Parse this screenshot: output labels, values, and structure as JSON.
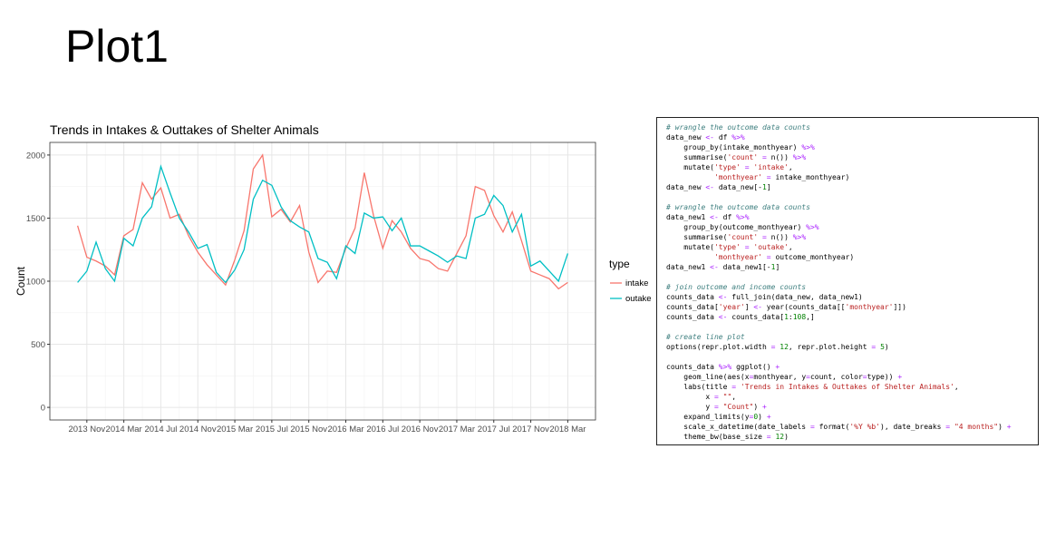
{
  "slide_title": "Plot1",
  "chart_data": {
    "type": "line",
    "title": "Trends in Intakes & Outtakes of Shelter Animals",
    "y_label": "Count",
    "x": [
      "2013-10",
      "2013-11",
      "2013-12",
      "2014-01",
      "2014-02",
      "2014-03",
      "2014-04",
      "2014-05",
      "2014-06",
      "2014-07",
      "2014-08",
      "2014-09",
      "2014-10",
      "2014-11",
      "2014-12",
      "2015-01",
      "2015-02",
      "2015-03",
      "2015-04",
      "2015-05",
      "2015-06",
      "2015-07",
      "2015-08",
      "2015-09",
      "2015-10",
      "2015-11",
      "2015-12",
      "2016-01",
      "2016-02",
      "2016-03",
      "2016-04",
      "2016-05",
      "2016-06",
      "2016-07",
      "2016-08",
      "2016-09",
      "2016-10",
      "2016-11",
      "2016-12",
      "2017-01",
      "2017-02",
      "2017-03",
      "2017-04",
      "2017-05",
      "2017-06",
      "2017-07",
      "2017-08",
      "2017-09",
      "2017-10",
      "2017-11",
      "2017-12",
      "2018-01",
      "2018-02",
      "2018-03"
    ],
    "series": [
      {
        "name": "intake",
        "color": "#F8766D",
        "values": [
          1440,
          1190,
          1160,
          1120,
          1050,
          1360,
          1410,
          1780,
          1650,
          1740,
          1500,
          1530,
          1360,
          1230,
          1130,
          1050,
          970,
          1170,
          1400,
          1890,
          2000,
          1510,
          1570,
          1470,
          1600,
          1230,
          990,
          1080,
          1070,
          1260,
          1420,
          1860,
          1520,
          1260,
          1480,
          1390,
          1260,
          1180,
          1160,
          1100,
          1080,
          1220,
          1360,
          1750,
          1720,
          1520,
          1390,
          1550,
          1320,
          1080,
          1050,
          1020,
          940,
          990
        ]
      },
      {
        "name": "outake",
        "color": "#00BFC4",
        "values": [
          990,
          1080,
          1310,
          1100,
          1000,
          1340,
          1280,
          1500,
          1590,
          1910,
          1700,
          1500,
          1390,
          1260,
          1290,
          1070,
          990,
          1090,
          1250,
          1650,
          1800,
          1760,
          1590,
          1480,
          1430,
          1390,
          1180,
          1150,
          1020,
          1280,
          1220,
          1540,
          1500,
          1510,
          1400,
          1500,
          1280,
          1280,
          1240,
          1200,
          1150,
          1200,
          1180,
          1500,
          1530,
          1680,
          1600,
          1390,
          1530,
          1120,
          1160,
          1080,
          1000,
          1220
        ]
      }
    ],
    "xlim": [
      "2013-07",
      "2018-06"
    ],
    "xticks": [
      {
        "value": "2013-11",
        "label": "2013 Nov"
      },
      {
        "value": "2014-03",
        "label": "2014 Mar"
      },
      {
        "value": "2014-07",
        "label": "2014 Jul"
      },
      {
        "value": "2014-11",
        "label": "2014 Nov"
      },
      {
        "value": "2015-03",
        "label": "2015 Mar"
      },
      {
        "value": "2015-07",
        "label": "2015 Jul"
      },
      {
        "value": "2015-11",
        "label": "2015 Nov"
      },
      {
        "value": "2016-03",
        "label": "2016 Mar"
      },
      {
        "value": "2016-07",
        "label": "2016 Jul"
      },
      {
        "value": "2016-11",
        "label": "2016 Nov"
      },
      {
        "value": "2017-03",
        "label": "2017 Mar"
      },
      {
        "value": "2017-07",
        "label": "2017 Jul"
      },
      {
        "value": "2017-11",
        "label": "2017 Nov"
      },
      {
        "value": "2018-03",
        "label": "2018 Mar"
      }
    ],
    "ylim": [
      -100,
      2100
    ],
    "yticks": [
      0,
      500,
      1000,
      1500,
      2000
    ],
    "grid": true,
    "legend_title": "type"
  },
  "code_blocks": [
    [
      "# wrangle the outcome data counts",
      "data_new <- df %>%",
      "    group_by(intake_monthyear) %>%",
      "    summarise('count' = n()) %>%",
      "    mutate('type' = 'intake',",
      "           'monthyear' = intake_monthyear)",
      "data_new <- data_new[-1]"
    ],
    [
      "# wrangle the outcome data counts",
      "data_new1 <- df %>%",
      "    group_by(outcome_monthyear) %>%",
      "    summarise('count' = n()) %>%",
      "    mutate('type' = 'outake',",
      "           'monthyear' = outcome_monthyear)",
      "data_new1 <- data_new1[-1]"
    ],
    [
      "# join outcome and income counts",
      "counts_data <- full_join(data_new, data_new1)",
      "counts_data['year'] <- year(counts_data[['monthyear']])",
      "counts_data <- counts_data[1:108,]"
    ],
    [
      "# create line plot",
      "options(repr.plot.width = 12, repr.plot.height = 5)"
    ],
    [
      "counts_data %>% ggplot() +",
      "    geom_line(aes(x=monthyear, y=count, color=type)) +",
      "    labs(title = 'Trends in Intakes & Outtakes of Shelter Animals',",
      "         x = \"\",",
      "         y = \"Count\") +",
      "    expand_limits(y=0) +",
      "    scale_x_datetime(date_labels = format('%Y %b'), date_breaks = \"4 months\") +",
      "    theme_bw(base_size = 12)"
    ]
  ]
}
